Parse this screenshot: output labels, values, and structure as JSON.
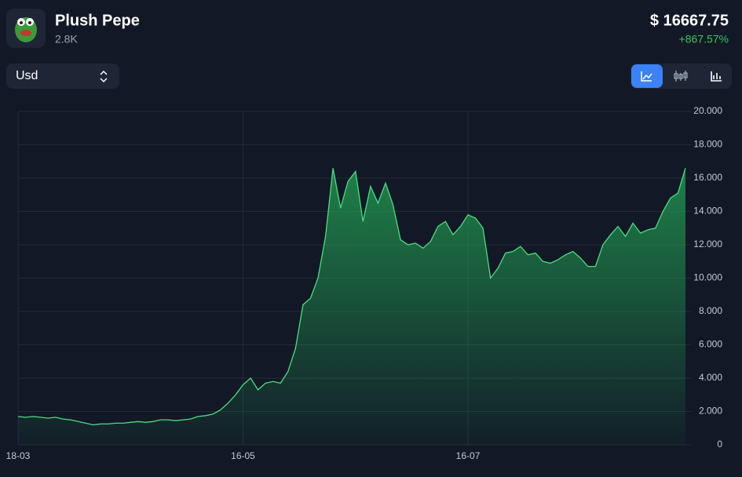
{
  "header": {
    "title": "Plush Pepe",
    "subtitle": "2.8K",
    "price": "$ 16667.75",
    "change": "+867.57%"
  },
  "currency_select": "Usd",
  "chart_data": {
    "type": "area",
    "color": "#4ade80",
    "categories": [
      "18-03",
      null,
      null,
      null,
      null,
      null,
      null,
      null,
      null,
      null,
      null,
      null,
      null,
      null,
      null,
      null,
      null,
      null,
      null,
      null,
      null,
      null,
      null,
      null,
      null,
      null,
      null,
      null,
      null,
      null,
      "16-05",
      null,
      null,
      null,
      null,
      null,
      null,
      null,
      null,
      null,
      null,
      null,
      null,
      null,
      null,
      null,
      null,
      null,
      null,
      null,
      null,
      null,
      null,
      null,
      null,
      null,
      null,
      null,
      null,
      null,
      "16-07",
      null,
      null,
      null,
      null,
      null,
      null,
      null,
      null,
      null,
      null,
      null,
      null,
      null,
      null,
      null,
      null,
      null,
      null,
      null,
      null,
      null,
      null,
      null,
      null,
      null,
      null,
      null,
      null,
      null
    ],
    "values": [
      1700,
      1650,
      1700,
      1650,
      1600,
      1650,
      1550,
      1500,
      1400,
      1300,
      1200,
      1250,
      1250,
      1300,
      1300,
      1350,
      1400,
      1350,
      1400,
      1500,
      1500,
      1450,
      1500,
      1550,
      1700,
      1750,
      1850,
      2100,
      2500,
      3000,
      3600,
      4000,
      3300,
      3700,
      3800,
      3700,
      4400,
      5800,
      8400,
      8800,
      10000,
      12500,
      16600,
      14200,
      15800,
      16400,
      13400,
      15500,
      14500,
      15700,
      14400,
      12300,
      12000,
      12100,
      11800,
      12200,
      13100,
      13400,
      12600,
      13100,
      13800,
      13600,
      13000,
      10000,
      10600,
      11500,
      11600,
      11900,
      11400,
      11500,
      11000,
      10900,
      11100,
      11400,
      11600,
      11200,
      10700,
      10700,
      12000,
      12600,
      13100,
      12500,
      13300,
      12700,
      12900,
      13000,
      14000,
      14800,
      15100,
      16600
    ],
    "ylim": [
      0,
      20000
    ],
    "yticks": [
      0,
      {
        "value": 2000,
        "label": "2.000"
      },
      {
        "value": 4000,
        "label": "4.000"
      },
      {
        "value": 6000,
        "label": "6.000"
      },
      {
        "value": 8000,
        "label": "8.000"
      },
      {
        "value": 10000,
        "label": "10.000"
      },
      {
        "value": 12000,
        "label": "12.000"
      },
      {
        "value": 14000,
        "label": "14.000"
      },
      {
        "value": 16000,
        "label": "16.000"
      },
      {
        "value": 18000,
        "label": "18.000"
      },
      {
        "value": 20000,
        "label": "20.000"
      }
    ],
    "grid": true
  }
}
